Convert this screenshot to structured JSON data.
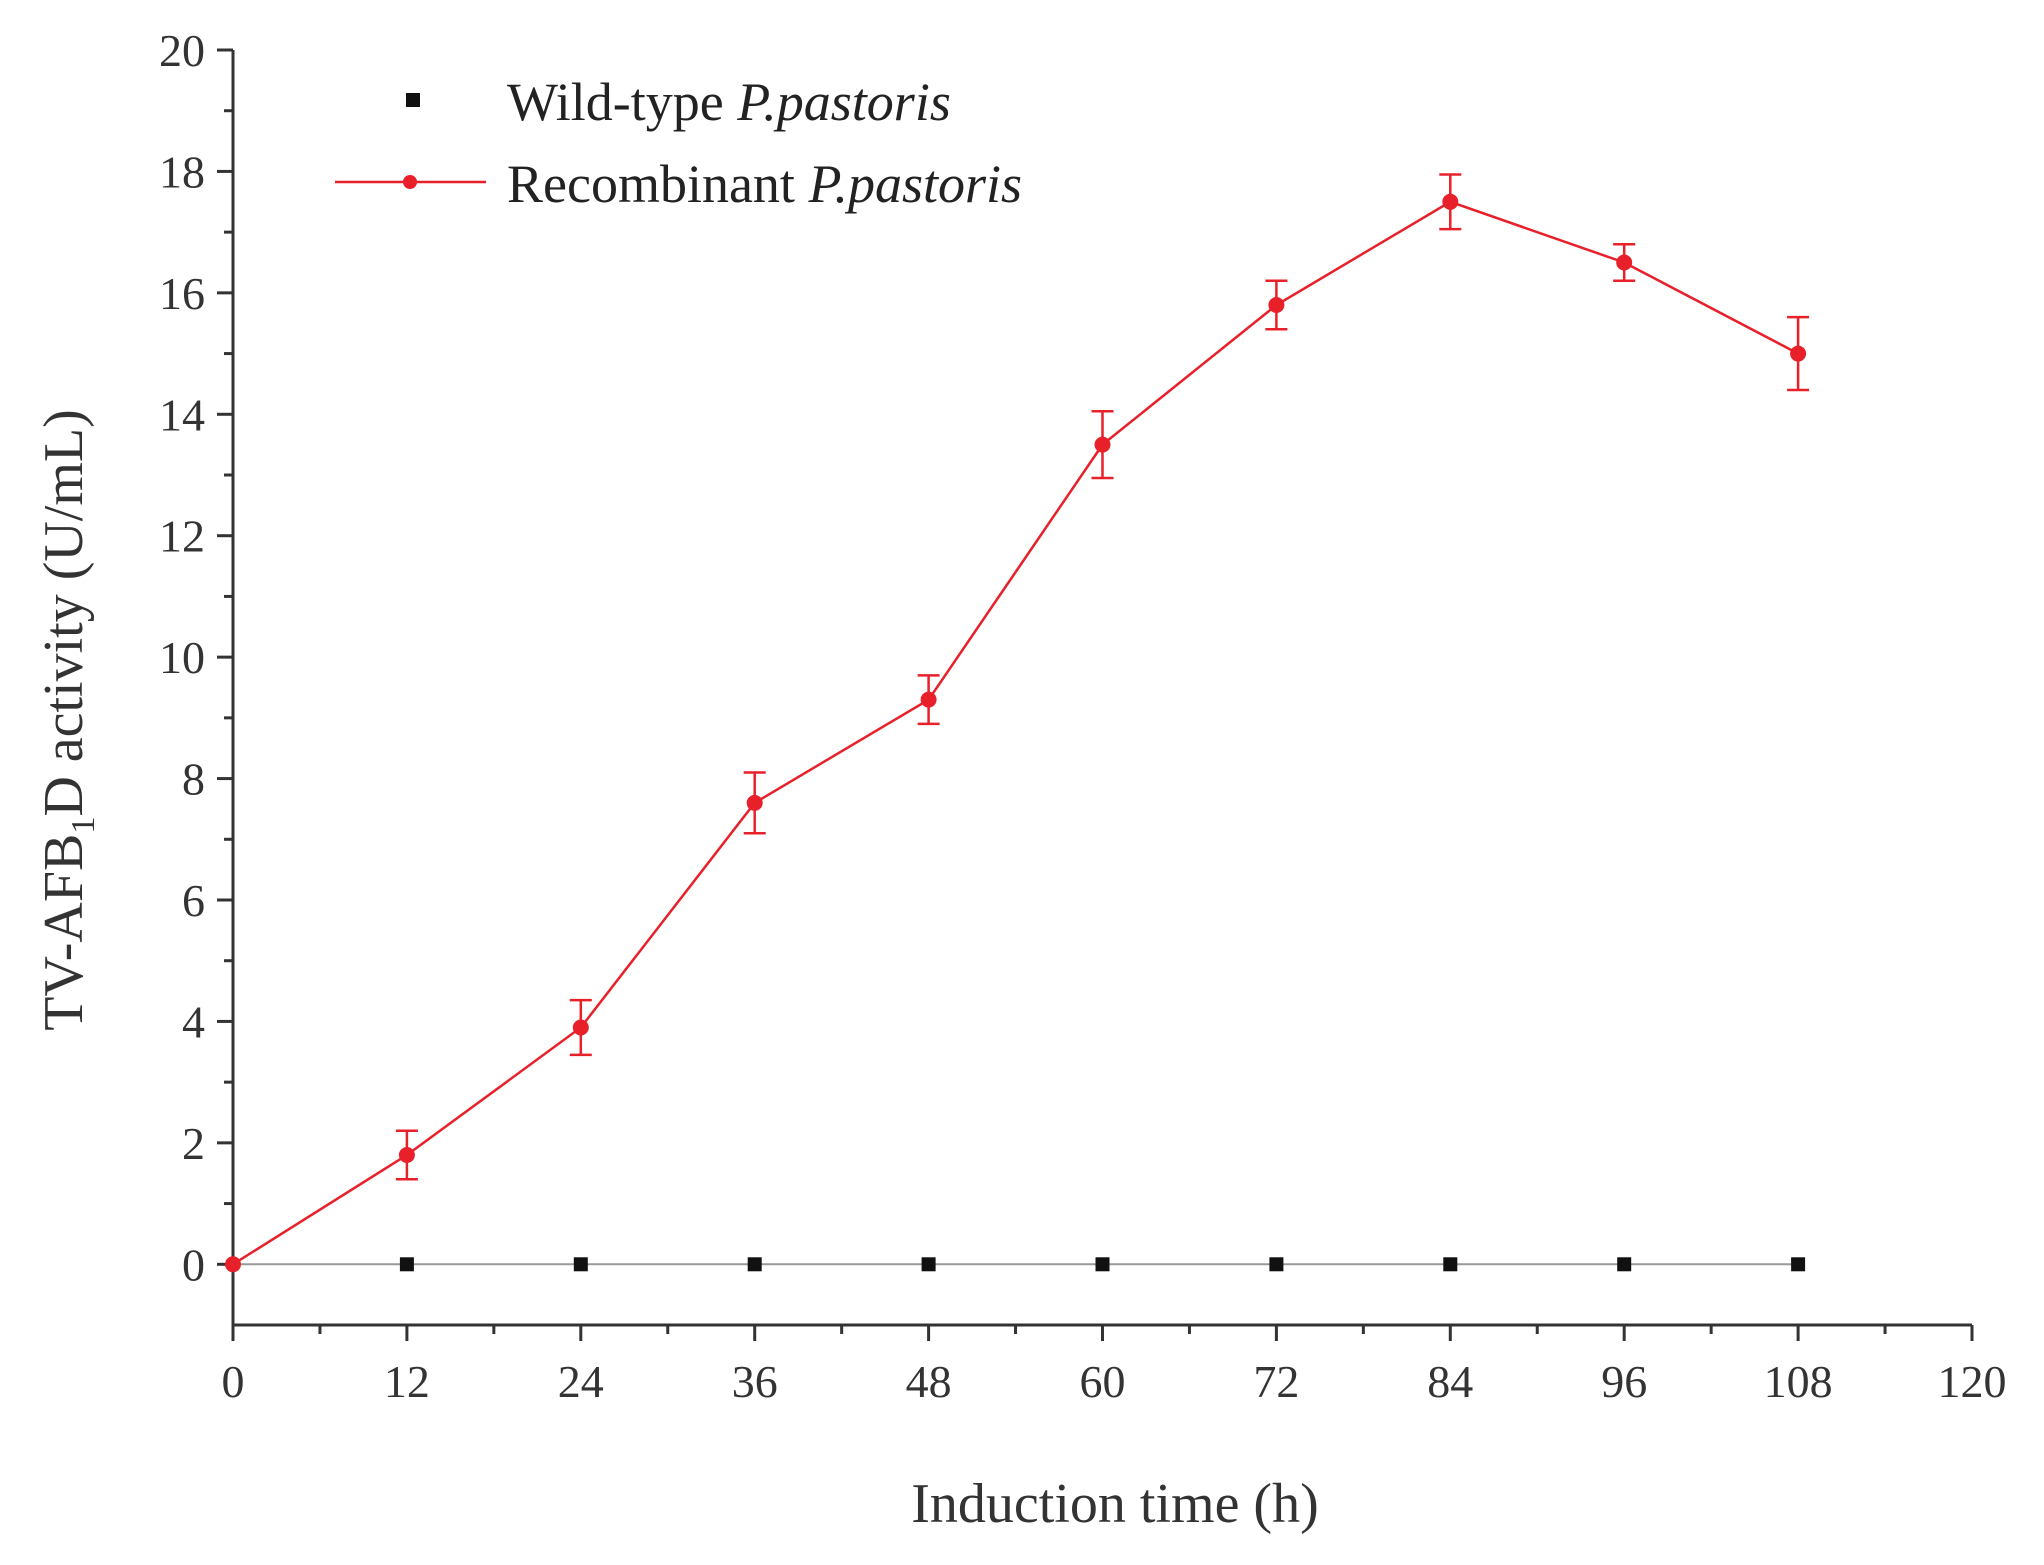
{
  "chart_data": {
    "type": "line",
    "title": "",
    "xlabel": "Induction time (h)",
    "ylabel": {
      "prefix": "TV-AFB",
      "subscript": "1",
      "suffix": "D activity (U/mL)"
    },
    "xlim": [
      0,
      120
    ],
    "ylim": [
      -1,
      20
    ],
    "x_ticks": [
      0,
      12,
      24,
      36,
      48,
      60,
      72,
      84,
      96,
      108,
      120
    ],
    "x_tick_labels": [
      "0",
      "12",
      "24",
      "36",
      "48",
      "60",
      "72",
      "84",
      "96",
      "108",
      "120"
    ],
    "y_ticks": [
      0,
      2,
      4,
      6,
      8,
      10,
      12,
      14,
      16,
      18,
      20
    ],
    "y_tick_labels": [
      "0",
      "2",
      "4",
      "6",
      "8",
      "10",
      "12",
      "14",
      "16",
      "18",
      "20"
    ],
    "grid": false,
    "legend_position": "top-left",
    "series": [
      {
        "name_prefix": "Wild-type ",
        "name_italic": "P.pastoris",
        "color": "#111111",
        "marker": "square",
        "line": false,
        "x": [
          0,
          12,
          24,
          36,
          48,
          60,
          72,
          84,
          96,
          108
        ],
        "y": [
          0,
          0,
          0,
          0,
          0,
          0,
          0,
          0,
          0,
          0
        ]
      },
      {
        "name_prefix": "Recombinant ",
        "name_italic": "P.pastoris",
        "color": "#e8202a",
        "marker": "circle",
        "line": true,
        "x": [
          0,
          12,
          24,
          36,
          48,
          60,
          72,
          84,
          96,
          108
        ],
        "y": [
          0,
          1.8,
          3.9,
          7.6,
          9.3,
          13.5,
          15.8,
          17.5,
          16.5,
          15.0
        ],
        "error": [
          0,
          0.4,
          0.45,
          0.5,
          0.4,
          0.55,
          0.4,
          0.45,
          0.3,
          0.6
        ]
      }
    ]
  }
}
